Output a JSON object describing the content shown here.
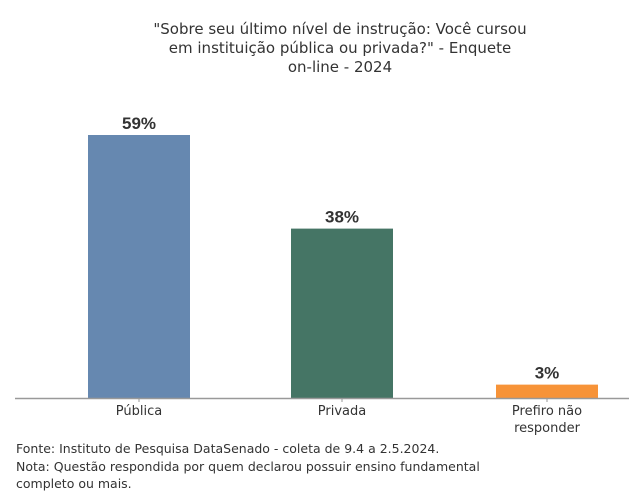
{
  "chart_data": {
    "type": "bar",
    "title": "\"Sobre seu último nível de instrução: Você cursou em instituição pública ou privada?\" - Enquete on-line - 2024",
    "title_lines": [
      "\"Sobre seu último nível de instrução: Você cursou",
      "em instituição pública ou privada?\" - Enquete",
      "on-line - 2024"
    ],
    "categories": [
      "Pública",
      "Privada",
      "Prefiro não responder"
    ],
    "category_lines": [
      [
        "Pública"
      ],
      [
        "Privada"
      ],
      [
        "Prefiro não",
        "responder"
      ]
    ],
    "values": [
      59,
      38,
      3
    ],
    "data_labels": [
      "59%",
      "38%",
      "3%"
    ],
    "colors": [
      "#6688b0",
      "#457565",
      "#f79338"
    ],
    "xlabel": "",
    "ylabel": "",
    "ylim": [
      0,
      59
    ],
    "grid": false
  },
  "footer": {
    "source": "Fonte: Instituto de Pesquisa DataSenado - coleta de 9.4 a 2.5.2024.",
    "note_line1": "Nota: Questão respondida por quem declarou possuir ensino fundamental",
    "note_line2": "completo ou mais."
  }
}
